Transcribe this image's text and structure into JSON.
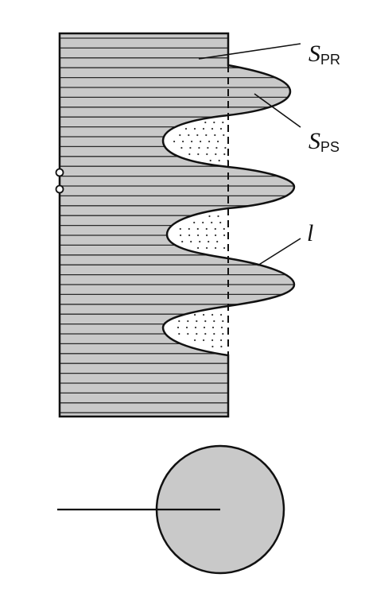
{
  "labels": {
    "s_pr": {
      "main": "S",
      "sub": "PR"
    },
    "s_ps": {
      "main": "S",
      "sub": "PS"
    },
    "l": "l"
  },
  "colors": {
    "background": "#ffffff",
    "fill": "#c9c9c9",
    "hatch": "#2a2a2a",
    "outline": "#111111",
    "dots": "#333333"
  }
}
